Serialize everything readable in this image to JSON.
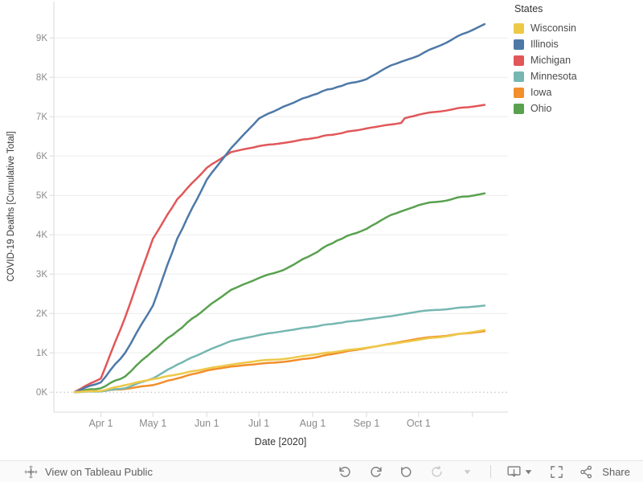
{
  "chart_data": {
    "type": "line",
    "title": "",
    "xlabel": "Date [2020]",
    "ylabel": "COVID-19 Deaths [Cumulative Total]",
    "legend_title": "States",
    "legend_position": "top-right",
    "grid": "horizontal",
    "ylim": [
      0,
      9800
    ],
    "y_ticks": [
      {
        "label": "0K",
        "value": 0
      },
      {
        "label": "1K",
        "value": 1000
      },
      {
        "label": "2K",
        "value": 2000
      },
      {
        "label": "3K",
        "value": 3000
      },
      {
        "label": "4K",
        "value": 4000
      },
      {
        "label": "5K",
        "value": 5000
      },
      {
        "label": "6K",
        "value": 6000
      },
      {
        "label": "7K",
        "value": 7000
      },
      {
        "label": "8K",
        "value": 8000
      },
      {
        "label": "9K",
        "value": 9000
      }
    ],
    "x_ticks": [
      {
        "label": "Apr 1",
        "day": 31
      },
      {
        "label": "May 1",
        "day": 61
      },
      {
        "label": "Jun 1",
        "day": 92
      },
      {
        "label": "Jul 1",
        "day": 122
      },
      {
        "label": "Aug 1",
        "day": 153
      },
      {
        "label": "Sep 1",
        "day": 184
      },
      {
        "label": "Oct 1",
        "day": 214
      },
      {
        "label": "",
        "day": 245
      }
    ],
    "x_day_origin": "2020-03-01",
    "series": [
      {
        "name": "Wisconsin",
        "color": "#EDC948",
        "points": [
          [
            16,
            5
          ],
          [
            31,
            30
          ],
          [
            45,
            180
          ],
          [
            61,
            330
          ],
          [
            75,
            450
          ],
          [
            92,
            600
          ],
          [
            106,
            700
          ],
          [
            122,
            800
          ],
          [
            136,
            840
          ],
          [
            153,
            950
          ],
          [
            167,
            1030
          ],
          [
            184,
            1130
          ],
          [
            198,
            1220
          ],
          [
            214,
            1330
          ],
          [
            233,
            1440
          ],
          [
            252,
            1580
          ]
        ]
      },
      {
        "name": "Illinois",
        "color": "#4E79A7",
        "points": [
          [
            16,
            5
          ],
          [
            31,
            250
          ],
          [
            45,
            1000
          ],
          [
            61,
            2200
          ],
          [
            75,
            3900
          ],
          [
            92,
            5400
          ],
          [
            106,
            6200
          ],
          [
            122,
            6950
          ],
          [
            136,
            7250
          ],
          [
            153,
            7550
          ],
          [
            167,
            7750
          ],
          [
            184,
            7950
          ],
          [
            198,
            8300
          ],
          [
            214,
            8550
          ],
          [
            233,
            8950
          ],
          [
            252,
            9350
          ]
        ]
      },
      {
        "name": "Michigan",
        "color": "#E15759",
        "points": [
          [
            16,
            10
          ],
          [
            31,
            350
          ],
          [
            45,
            1900
          ],
          [
            61,
            3900
          ],
          [
            75,
            4900
          ],
          [
            92,
            5700
          ],
          [
            106,
            6100
          ],
          [
            122,
            6250
          ],
          [
            136,
            6330
          ],
          [
            153,
            6450
          ],
          [
            167,
            6560
          ],
          [
            184,
            6700
          ],
          [
            198,
            6800
          ],
          [
            204,
            6840
          ],
          [
            206,
            6960
          ],
          [
            214,
            7050
          ],
          [
            233,
            7180
          ],
          [
            252,
            7300
          ]
        ]
      },
      {
        "name": "Minnesota",
        "color": "#76B7B2",
        "points": [
          [
            16,
            0
          ],
          [
            31,
            20
          ],
          [
            45,
            100
          ],
          [
            61,
            350
          ],
          [
            75,
            700
          ],
          [
            92,
            1050
          ],
          [
            106,
            1300
          ],
          [
            122,
            1450
          ],
          [
            136,
            1550
          ],
          [
            153,
            1660
          ],
          [
            167,
            1750
          ],
          [
            184,
            1850
          ],
          [
            198,
            1930
          ],
          [
            214,
            2050
          ],
          [
            233,
            2120
          ],
          [
            252,
            2200
          ]
        ]
      },
      {
        "name": "Iowa",
        "color": "#F28E2B",
        "points": [
          [
            16,
            0
          ],
          [
            31,
            30
          ],
          [
            45,
            80
          ],
          [
            61,
            180
          ],
          [
            75,
            350
          ],
          [
            92,
            550
          ],
          [
            106,
            650
          ],
          [
            122,
            720
          ],
          [
            136,
            770
          ],
          [
            153,
            870
          ],
          [
            167,
            990
          ],
          [
            184,
            1120
          ],
          [
            198,
            1230
          ],
          [
            214,
            1360
          ],
          [
            233,
            1450
          ],
          [
            252,
            1550
          ]
        ]
      },
      {
        "name": "Ohio",
        "color": "#59A14F",
        "points": [
          [
            16,
            0
          ],
          [
            31,
            100
          ],
          [
            45,
            400
          ],
          [
            61,
            1050
          ],
          [
            75,
            1550
          ],
          [
            92,
            2150
          ],
          [
            106,
            2600
          ],
          [
            122,
            2900
          ],
          [
            136,
            3100
          ],
          [
            153,
            3500
          ],
          [
            167,
            3850
          ],
          [
            184,
            4150
          ],
          [
            198,
            4500
          ],
          [
            214,
            4750
          ],
          [
            233,
            4900
          ],
          [
            252,
            5050
          ]
        ]
      }
    ]
  },
  "colors": {
    "axis_line": "#d9d9d9",
    "gridline": "#ececec",
    "zero_line": "#b5b5b5",
    "tick_label": "#8a8a8a",
    "axis_title": "#363636",
    "icon_gray": "#7b7b7b",
    "icon_disabled": "#c9c9c9",
    "toolbar_bg": "#fafafa"
  },
  "toolbar": {
    "view_label": "View on Tableau Public",
    "share_label": "Share",
    "icons": [
      {
        "name": "undo",
        "enabled": true
      },
      {
        "name": "redo",
        "enabled": true
      },
      {
        "name": "revert",
        "enabled": true
      },
      {
        "name": "refresh",
        "enabled": false
      },
      {
        "name": "pause-dropdown",
        "enabled": false
      },
      {
        "name": "download",
        "enabled": true
      },
      {
        "name": "fullscreen",
        "enabled": true
      },
      {
        "name": "share",
        "enabled": true
      }
    ]
  }
}
